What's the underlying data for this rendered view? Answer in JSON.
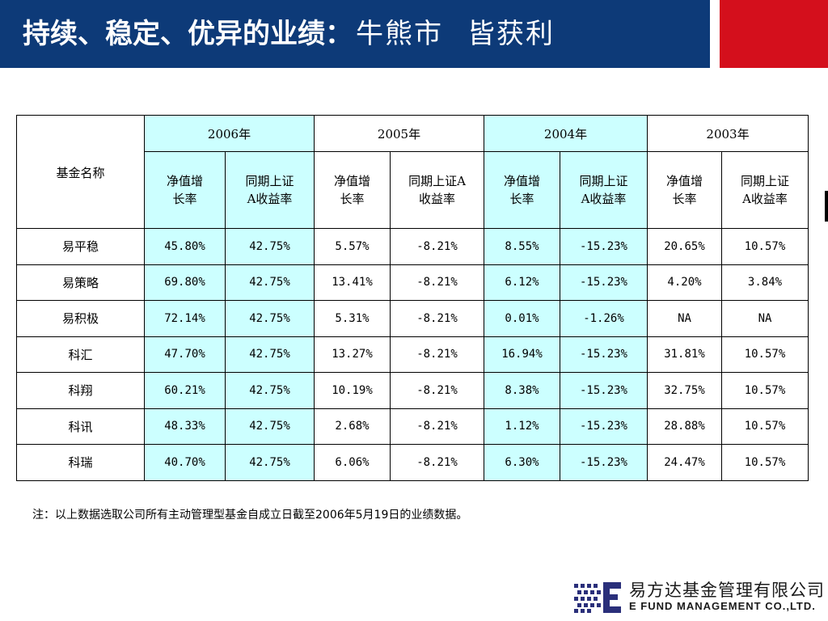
{
  "title": {
    "main": "持续、稳定、优异的业绩：",
    "part2": "牛熊市",
    "part3": "皆获利"
  },
  "table": {
    "name_header": "基金名称",
    "years": [
      "2006年",
      "2005年",
      "2004年",
      "2003年"
    ],
    "sub_headers": {
      "nav_growth": [
        "净值增",
        "长率"
      ],
      "index_return": [
        "同期上证",
        "A收益率"
      ],
      "index_return_alt": [
        "同期上证A",
        "收益率"
      ]
    },
    "rows": [
      {
        "name": "易平稳",
        "values": [
          "45.80%",
          "42.75%",
          "5.57%",
          "-8.21%",
          "8.55%",
          "-15.23%",
          "20.65%",
          "10.57%"
        ]
      },
      {
        "name": "易策略",
        "values": [
          "69.80%",
          "42.75%",
          "13.41%",
          "-8.21%",
          "6.12%",
          "-15.23%",
          "4.20%",
          "3.84%"
        ]
      },
      {
        "name": "易积极",
        "values": [
          "72.14%",
          "42.75%",
          "5.31%",
          "-8.21%",
          "0.01%",
          "-1.26%",
          "NA",
          "NA"
        ]
      },
      {
        "name": "科汇",
        "values": [
          "47.70%",
          "42.75%",
          "13.27%",
          "-8.21%",
          "16.94%",
          "-15.23%",
          "31.81%",
          "10.57%"
        ]
      },
      {
        "name": "科翔",
        "values": [
          "60.21%",
          "42.75%",
          "10.19%",
          "-8.21%",
          "8.38%",
          "-15.23%",
          "32.75%",
          "10.57%"
        ]
      },
      {
        "name": "科讯",
        "values": [
          "48.33%",
          "42.75%",
          "2.68%",
          "-8.21%",
          "1.12%",
          "-15.23%",
          "28.88%",
          "10.57%"
        ]
      },
      {
        "name": "科瑞",
        "values": [
          "40.70%",
          "42.75%",
          "6.06%",
          "-8.21%",
          "6.30%",
          "-15.23%",
          "24.47%",
          "10.57%"
        ]
      }
    ]
  },
  "note": "注：以上数据选取公司所有主动管理型基金自成立日截至2006年5月19日的业绩数据。",
  "logo": {
    "cn": "易方达基金管理有限公司",
    "en": "E FUND MANAGEMENT CO.,LTD."
  },
  "colors": {
    "header_blue": "#0d3a78",
    "header_red": "#d40f1c",
    "highlight_cyan": "#ccffff"
  }
}
